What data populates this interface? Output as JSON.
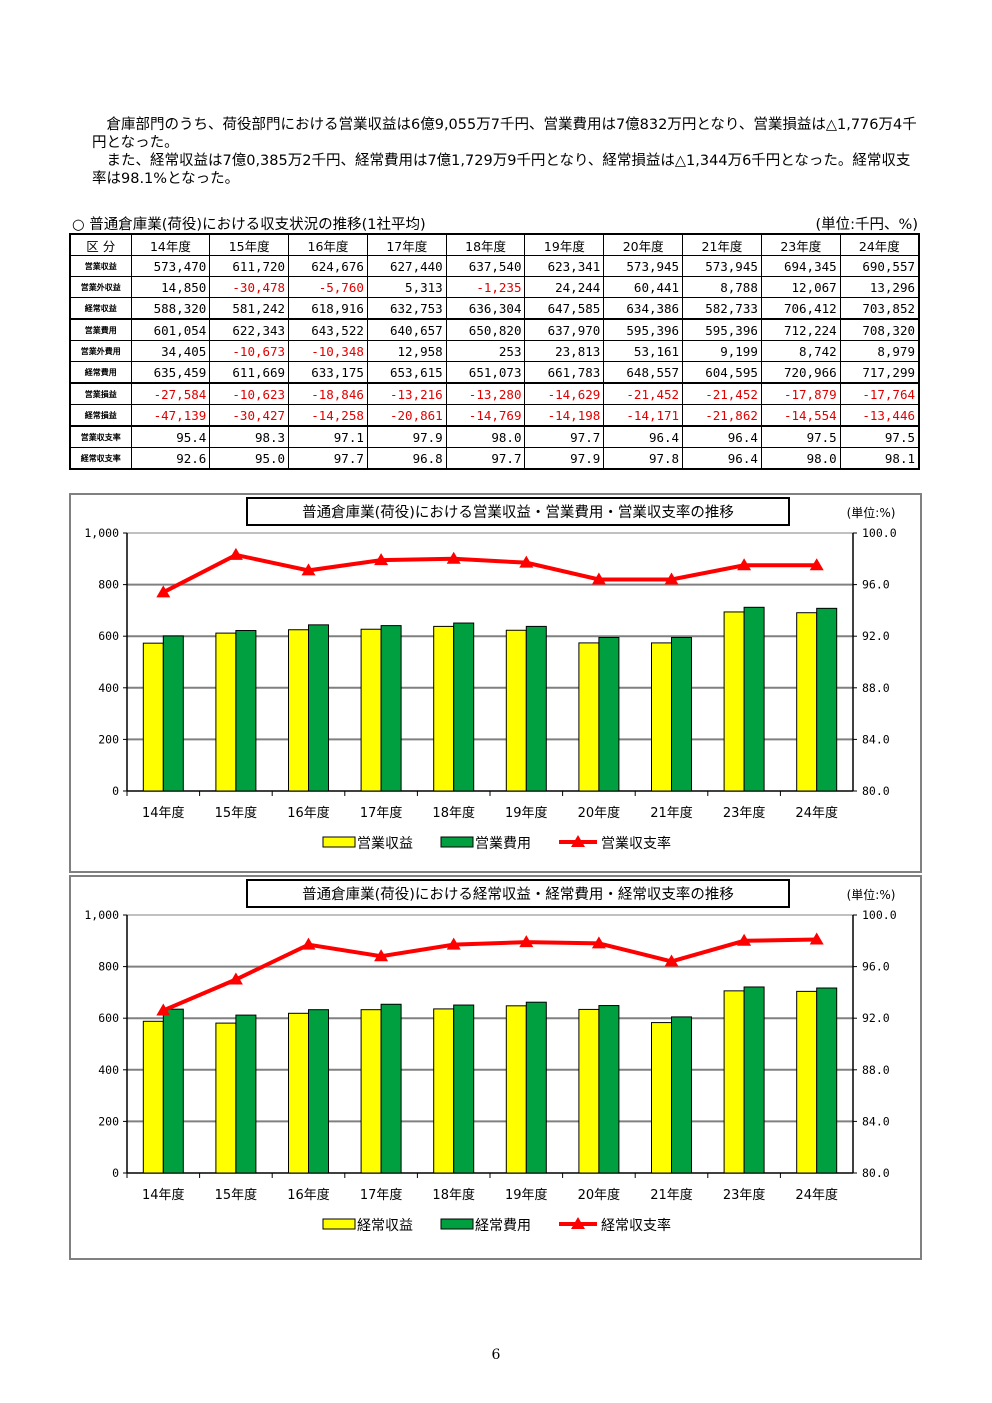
{
  "intro": {
    "line1": "倉庫部門のうち、荷役部門における営業収益は6億9,055万7千円、営業費用は7億832万円となり、営業損益は△1,776万4千円となった。",
    "line2": "また、経常収益は7億0,385万2千円、経常費用は7億1,729万9千円となり、経常損益は△1,344万6千円となった。経常収支率は98.1%となった。"
  },
  "table": {
    "title": "○ 普通倉庫業(荷役)における収支状況の推移(1社平均)",
    "unit": "(単位:千円、%)",
    "header_label": "区 分",
    "columns": [
      "14年度",
      "15年度",
      "16年度",
      "17年度",
      "18年度",
      "19年度",
      "20年度",
      "21年度",
      "23年度",
      "24年度"
    ],
    "rows": [
      {
        "label": "営業収益",
        "values": [
          "573,470",
          "611,720",
          "624,676",
          "627,440",
          "637,540",
          "623,341",
          "573,945",
          "573,945",
          "694,345",
          "690,557"
        ]
      },
      {
        "label": "営業外収益",
        "values": [
          "14,850",
          "-30,478",
          "-5,760",
          "5,313",
          "-1,235",
          "24,244",
          "60,441",
          "8,788",
          "12,067",
          "13,296"
        ]
      },
      {
        "label": "経常収益",
        "values": [
          "588,320",
          "581,242",
          "618,916",
          "632,753",
          "636,304",
          "647,585",
          "634,386",
          "582,733",
          "706,412",
          "703,852"
        ]
      },
      {
        "label": "営業費用",
        "values": [
          "601,054",
          "622,343",
          "643,522",
          "640,657",
          "650,820",
          "637,970",
          "595,396",
          "595,396",
          "712,224",
          "708,320"
        ]
      },
      {
        "label": "営業外費用",
        "values": [
          "34,405",
          "-10,673",
          "-10,348",
          "12,958",
          "253",
          "23,813",
          "53,161",
          "9,199",
          "8,742",
          "8,979"
        ]
      },
      {
        "label": "経常費用",
        "values": [
          "635,459",
          "611,669",
          "633,175",
          "653,615",
          "651,073",
          "661,783",
          "648,557",
          "604,595",
          "720,966",
          "717,299"
        ]
      },
      {
        "label": "営業損益",
        "values": [
          "-27,584",
          "-10,623",
          "-18,846",
          "-13,216",
          "-13,280",
          "-14,629",
          "-21,452",
          "-21,452",
          "-17,879",
          "-17,764"
        ]
      },
      {
        "label": "経常損益",
        "values": [
          "-47,139",
          "-30,427",
          "-14,258",
          "-20,861",
          "-14,769",
          "-14,198",
          "-14,171",
          "-21,862",
          "-14,554",
          "-13,446"
        ]
      },
      {
        "label": "営業収支率",
        "values": [
          "95.4",
          "98.3",
          "97.1",
          "97.9",
          "98.0",
          "97.7",
          "96.4",
          "96.4",
          "97.5",
          "97.5"
        ]
      },
      {
        "label": "経常収支率",
        "values": [
          "92.6",
          "95.0",
          "97.7",
          "96.8",
          "97.7",
          "97.9",
          "97.8",
          "96.4",
          "98.0",
          "98.1"
        ]
      }
    ]
  },
  "chart_data": [
    {
      "type": "bar",
      "title": "普通倉庫業(荷役)における営業収益・営業費用・営業収支率の推移",
      "unit": "(単位:%)",
      "categories": [
        "14年度",
        "15年度",
        "16年度",
        "17年度",
        "18年度",
        "19年度",
        "20年度",
        "21年度",
        "23年度",
        "24年度"
      ],
      "series": [
        {
          "name": "営業収益",
          "type": "bar",
          "color": "#ffff00",
          "values": [
            573,
            612,
            625,
            627,
            638,
            623,
            574,
            574,
            694,
            691
          ]
        },
        {
          "name": "営業費用",
          "type": "bar",
          "color": "#00a040",
          "values": [
            601,
            622,
            644,
            641,
            651,
            638,
            595,
            595,
            712,
            708
          ]
        },
        {
          "name": "営業収支率",
          "type": "line",
          "color": "#ff0000",
          "axis": "right",
          "values": [
            95.4,
            98.3,
            97.1,
            97.9,
            98.0,
            97.7,
            96.4,
            96.4,
            97.5,
            97.5
          ]
        }
      ],
      "ylim": [
        0,
        1000
      ],
      "y_ticks": [
        "0",
        "200",
        "400",
        "600",
        "800",
        "1,000"
      ],
      "y2lim": [
        80,
        100
      ],
      "y2_ticks": [
        "80.0",
        "84.0",
        "88.0",
        "92.0",
        "96.0",
        "100.0"
      ],
      "grid": true,
      "legend": "bottom"
    },
    {
      "type": "bar",
      "title": "普通倉庫業(荷役)における経常収益・経常費用・経常収支率の推移",
      "unit": "(単位:%)",
      "categories": [
        "14年度",
        "15年度",
        "16年度",
        "17年度",
        "18年度",
        "19年度",
        "20年度",
        "21年度",
        "23年度",
        "24年度"
      ],
      "series": [
        {
          "name": "経常収益",
          "type": "bar",
          "color": "#ffff00",
          "values": [
            588,
            581,
            619,
            633,
            636,
            648,
            634,
            583,
            706,
            704
          ]
        },
        {
          "name": "経常費用",
          "type": "bar",
          "color": "#00a040",
          "values": [
            635,
            612,
            633,
            654,
            651,
            662,
            649,
            605,
            721,
            717
          ]
        },
        {
          "name": "経常収支率",
          "type": "line",
          "color": "#ff0000",
          "axis": "right",
          "values": [
            92.6,
            95.0,
            97.7,
            96.8,
            97.7,
            97.9,
            97.8,
            96.4,
            98.0,
            98.1
          ]
        }
      ],
      "ylim": [
        0,
        1000
      ],
      "y_ticks": [
        "0",
        "200",
        "400",
        "600",
        "800",
        "1,000"
      ],
      "y2lim": [
        80,
        100
      ],
      "y2_ticks": [
        "80.0",
        "84.0",
        "88.0",
        "92.0",
        "96.0",
        "100.0"
      ],
      "grid": true,
      "legend": "bottom"
    }
  ],
  "page_number": "6"
}
